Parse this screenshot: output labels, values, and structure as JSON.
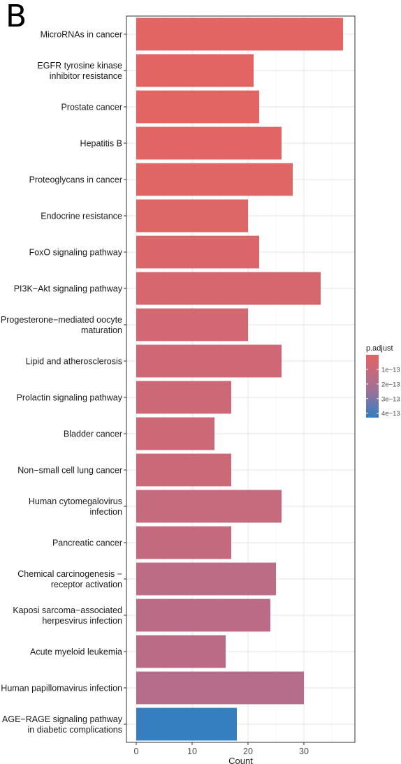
{
  "panel_label": "B",
  "chart_data": {
    "type": "bar",
    "orientation": "horizontal",
    "xlabel": "Count",
    "ylabel": "",
    "xlim": [
      0,
      39
    ],
    "xticks": [
      0,
      10,
      20,
      30
    ],
    "grid": true,
    "legend_position": "right",
    "categories": [
      "MicroRNAs in cancer",
      "EGFR tyrosine kinase\ninhibitor resistance",
      "Prostate cancer",
      "Hepatitis B",
      "Proteoglycans in cancer",
      "Endocrine resistance",
      "FoxO signaling pathway",
      "PI3K−Akt signaling pathway",
      "Progesterone−mediated oocyte\nmaturation",
      "Lipid and atherosclerosis",
      "Prolactin signaling pathway",
      "Bladder cancer",
      "Non−small cell lung cancer",
      "Human cytomegalovirus\ninfection",
      "Pancreatic cancer",
      "Chemical carcinogenesis −\nreceptor activation",
      "Kaposi sarcoma−associated\nherpesvirus infection",
      "Acute myeloid leukemia",
      "Human papillomavirus infection",
      "AGE−RAGE signaling pathway\nin diabetic complications"
    ],
    "values": [
      37,
      21,
      22,
      26,
      28,
      20,
      22,
      33,
      20,
      26,
      17,
      14,
      17,
      26,
      17,
      25,
      24,
      16,
      30,
      18
    ],
    "p_adjust": [
      2e-16,
      5e-16,
      1e-15,
      5e-15,
      1e-14,
      2e-14,
      3e-14,
      5e-14,
      7e-14,
      8e-14,
      9e-14,
      9e-14,
      1e-13,
      1.2e-13,
      1.3e-13,
      1.6e-13,
      1.7e-13,
      1.7e-13,
      1.9e-13,
      4.2e-13
    ],
    "colorbar": {
      "title": "p.adjust",
      "min": 0,
      "max": 4.3e-13,
      "low_color": "#E26563",
      "high_color": "#2F7FC1",
      "ticks": [
        {
          "value": 1e-13,
          "label": "1e−13"
        },
        {
          "value": 2e-13,
          "label": "2e−13"
        },
        {
          "value": 3e-13,
          "label": "3e−13"
        },
        {
          "value": 4e-13,
          "label": "4e−13"
        }
      ]
    }
  }
}
